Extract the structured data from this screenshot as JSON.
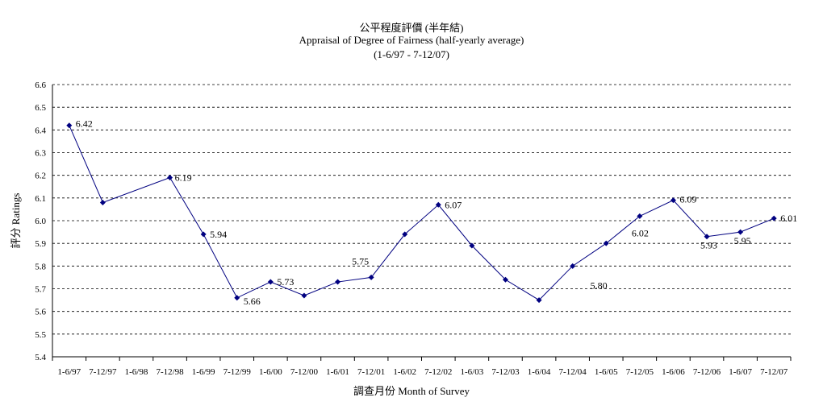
{
  "chart_data": {
    "type": "line",
    "title_zh": "公平程度評價 (半年結)",
    "title": "Appraisal of Degree of Fairness (half-yearly average)",
    "subtitle": "(1-6/97 - 7-12/07)",
    "xlabel": "調查月份 Month of Survey",
    "ylabel": "評分 Ratings",
    "categories": [
      "1-6/97",
      "7-12/97",
      "1-6/98",
      "7-12/98",
      "1-6/99",
      "7-12/99",
      "1-6/00",
      "7-12/00",
      "1-6/01",
      "7-12/01",
      "1-6/02",
      "7-12/02",
      "1-6/03",
      "7-12/03",
      "1-6/04",
      "7-12/04",
      "1-6/05",
      "7-12/05",
      "1-6/06",
      "7-12/06",
      "1-6/07",
      "7-12/07"
    ],
    "series": [
      {
        "color": "#000080",
        "values": [
          6.42,
          6.08,
          null,
          6.19,
          5.94,
          5.66,
          5.73,
          5.67,
          5.73,
          5.75,
          5.94,
          6.07,
          5.89,
          5.74,
          5.65,
          5.8,
          5.9,
          6.02,
          6.09,
          5.93,
          5.95,
          6.01
        ]
      }
    ],
    "data_labels": [
      {
        "index": 0,
        "text": "6.42"
      },
      {
        "index": 3,
        "text": "6.19"
      },
      {
        "index": 4,
        "text": "5.94"
      },
      {
        "index": 5,
        "text": "5.66"
      },
      {
        "index": 6,
        "text": "5.73"
      },
      {
        "index": 9,
        "text": "5.75"
      },
      {
        "index": 11,
        "text": "6.07"
      },
      {
        "index": 15,
        "text": "5.80"
      },
      {
        "index": 17,
        "text": "6.02"
      },
      {
        "index": 18,
        "text": "6.09"
      },
      {
        "index": 19,
        "text": "5.93"
      },
      {
        "index": 20,
        "text": "5.95"
      },
      {
        "index": 21,
        "text": "6.01"
      }
    ],
    "ylim": [
      5.4,
      6.6
    ],
    "yticks": [
      "5.4",
      "5.5",
      "5.6",
      "5.7",
      "5.8",
      "5.9",
      "6.0",
      "6.1",
      "6.2",
      "6.3",
      "6.4",
      "6.5",
      "6.6"
    ],
    "grid": true,
    "legend": "none"
  }
}
